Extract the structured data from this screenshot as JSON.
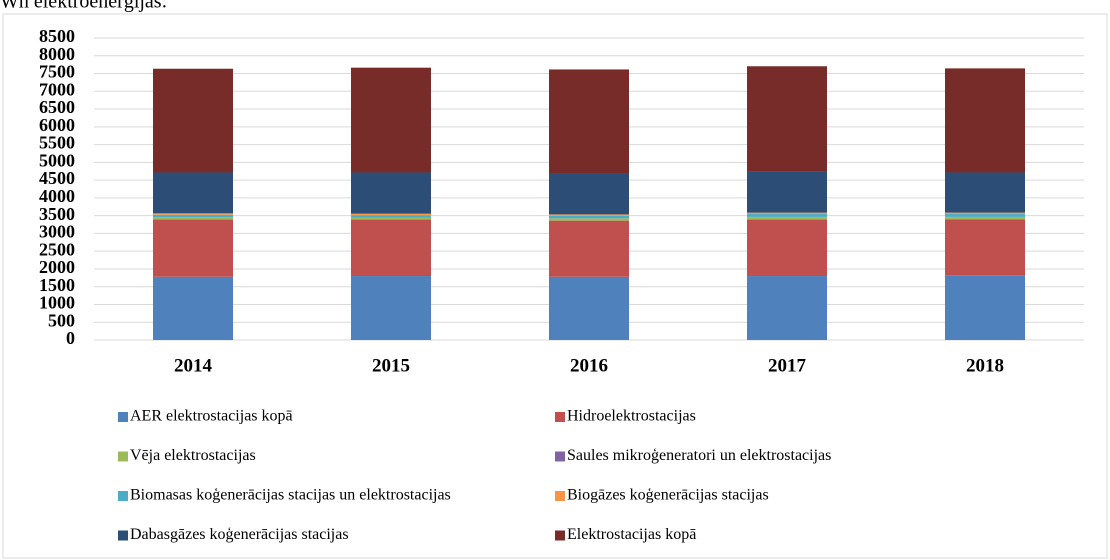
{
  "chart_data": {
    "type": "stacked_bar",
    "heading": "Wh elektroenerģijas:",
    "categories": [
      "2014",
      "2015",
      "2016",
      "2017",
      "2018"
    ],
    "series": [
      {
        "name": "AER elektrostacijas kopā",
        "color": "#4f81bd",
        "values": [
          1780,
          1800,
          1780,
          1800,
          1820
        ]
      },
      {
        "name": "Hidroelektrostacijas",
        "color": "#c0504d",
        "values": [
          1610,
          1590,
          1580,
          1590,
          1580
        ]
      },
      {
        "name": "Vēja elektrostacijas",
        "color": "#9bbb59",
        "values": [
          60,
          50,
          60,
          70,
          60
        ]
      },
      {
        "name": "Saules mikroģeneratori un elektrostacijas",
        "color": "#8064a2",
        "values": [
          5,
          5,
          5,
          5,
          5
        ]
      },
      {
        "name": "Biomasas koģenerācijas stacijas un elektrostacijas",
        "color": "#4bacc6",
        "values": [
          70,
          70,
          70,
          80,
          80
        ]
      },
      {
        "name": "Biogāzes koģenerācijas stacijas",
        "color": "#f79646",
        "values": [
          40,
          40,
          40,
          40,
          40
        ]
      },
      {
        "name": "Dabasgāzes koģenerācijas stacijas",
        "color": "#2c4d75",
        "values": [
          1150,
          1160,
          1150,
          1170,
          1130
        ]
      },
      {
        "name": "Elektrostacijas kopā",
        "color": "#772c2a",
        "values": [
          2920,
          2950,
          2930,
          2950,
          2930
        ]
      }
    ],
    "ylim": [
      0,
      8500
    ],
    "yticks": [
      0,
      500,
      1000,
      1500,
      2000,
      2500,
      3000,
      3500,
      4000,
      4500,
      5000,
      5500,
      6000,
      6500,
      7000,
      7500,
      8000,
      8500
    ],
    "grid": true,
    "legend": "bottom"
  }
}
